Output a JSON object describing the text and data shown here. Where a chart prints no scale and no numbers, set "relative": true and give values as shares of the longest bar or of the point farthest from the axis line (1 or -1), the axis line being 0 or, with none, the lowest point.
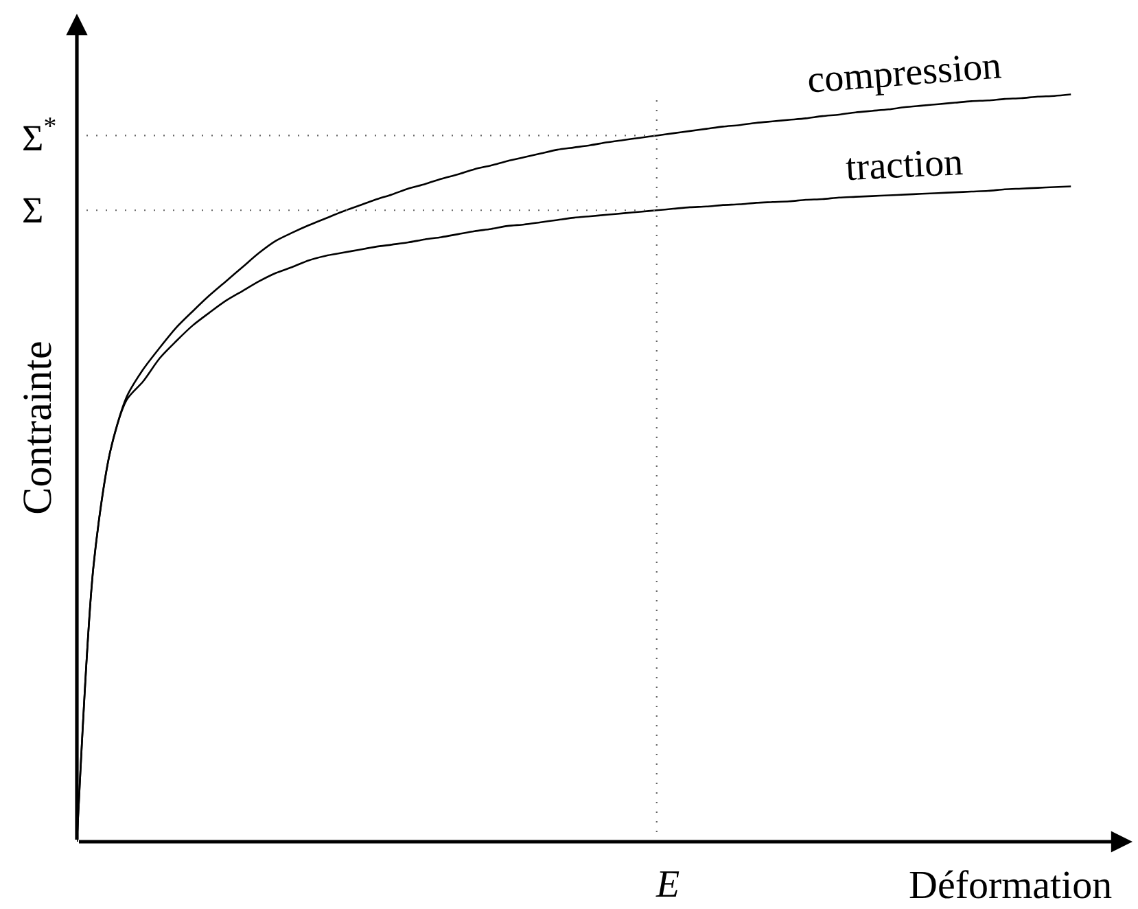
{
  "chart_data": {
    "type": "line",
    "relative": true,
    "xlabel": "Déformation",
    "ylabel": "Contrainte",
    "categories": [
      null,
      null,
      null,
      null,
      null,
      null,
      null,
      null,
      null,
      null,
      null,
      null,
      null,
      null,
      null,
      null,
      null,
      null,
      null,
      null,
      null,
      null,
      null,
      null,
      null,
      null,
      null,
      null,
      null,
      null,
      null,
      null,
      null,
      null,
      null,
      null,
      null,
      null,
      null,
      null,
      null,
      null,
      null,
      null,
      null,
      null,
      null,
      null,
      null,
      null,
      null,
      null,
      null,
      null,
      null,
      null,
      null,
      null,
      null,
      null,
      null
    ],
    "series": [
      {
        "name": "compression",
        "color": "#000000",
        "values": [
          0,
          0.368,
          0.521,
          0.595,
          0.632,
          0.661,
          0.688,
          0.71,
          0.731,
          0.75,
          0.769,
          0.788,
          0.804,
          0.815,
          0.825,
          0.834,
          0.843,
          0.851,
          0.859,
          0.866,
          0.874,
          0.88,
          0.887,
          0.893,
          0.9,
          0.905,
          0.911,
          0.916,
          0.921,
          0.926,
          0.929,
          0.932,
          0.936,
          0.939,
          0.942,
          0.945,
          0.948,
          0.951,
          0.954,
          0.957,
          0.959,
          0.962,
          0.964,
          0.966,
          0.968,
          0.971,
          0.973,
          0.976,
          0.978,
          0.98,
          0.983,
          0.985,
          0.987,
          0.989,
          0.991,
          0.992,
          0.994,
          0.995,
          0.997,
          0.998,
          1
        ]
      },
      {
        "name": "traction",
        "color": "#000000",
        "values": [
          0,
          0.368,
          0.521,
          0.591,
          0.616,
          0.647,
          0.67,
          0.691,
          0.708,
          0.724,
          0.737,
          0.75,
          0.761,
          0.769,
          0.778,
          0.784,
          0.788,
          0.792,
          0.796,
          0.799,
          0.802,
          0.806,
          0.809,
          0.813,
          0.817,
          0.82,
          0.824,
          0.826,
          0.829,
          0.832,
          0.835,
          0.837,
          0.839,
          0.841,
          0.843,
          0.845,
          0.847,
          0.849,
          0.85,
          0.852,
          0.853,
          0.855,
          0.856,
          0.857,
          0.859,
          0.86,
          0.862,
          0.863,
          0.864,
          0.865,
          0.866,
          0.867,
          0.868,
          0.869,
          0.87,
          0.871,
          0.873,
          0.874,
          0.875,
          0.876,
          0.877
        ]
      }
    ],
    "ref_lines": [
      {
        "axis": "y",
        "value": 0.945,
        "label": "Σ$^{*}$",
        "color": "#666666",
        "line_style": "dotted"
      },
      {
        "axis": "y",
        "value": 0.845,
        "label": "Σ",
        "color": "#666666",
        "line_style": "dotted"
      }
    ],
    "annotations": [
      "E"
    ],
    "legend": false,
    "marker": "none",
    "line_style": "solid"
  }
}
